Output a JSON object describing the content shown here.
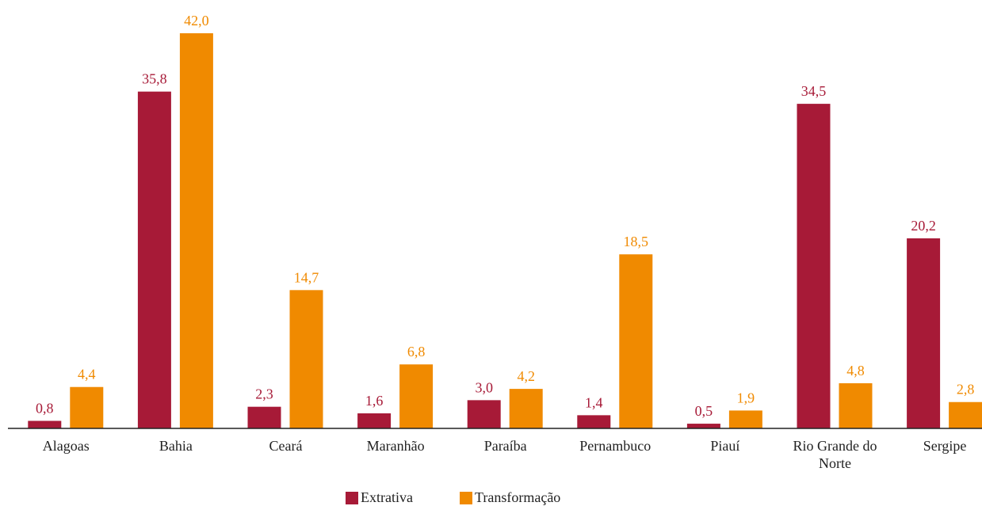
{
  "chart_data": {
    "type": "bar",
    "categories": [
      "Alagoas",
      "Bahia",
      "Ceará",
      "Maranhão",
      "Paraíba",
      "Pernambuco",
      "Piauí",
      "Rio Grande do Norte",
      "Sergipe"
    ],
    "series": [
      {
        "name": "Extrativa",
        "color": "#a71a37",
        "values": [
          0.8,
          35.8,
          2.3,
          1.6,
          3.0,
          1.4,
          0.5,
          34.5,
          20.2
        ],
        "value_labels": [
          "0,8",
          "35,8",
          "2,3",
          "1,6",
          "3,0",
          "1,4",
          "0,5",
          "34,5",
          "20,2"
        ]
      },
      {
        "name": "Transformação",
        "color": "#f08a00",
        "values": [
          4.4,
          42.0,
          14.7,
          6.8,
          4.2,
          18.5,
          1.9,
          4.8,
          2.8
        ],
        "value_labels": [
          "4,4",
          "42,0",
          "14,7",
          "6,8",
          "4,2",
          "18,5",
          "1,9",
          "4,8",
          "2,8"
        ]
      }
    ]
  }
}
